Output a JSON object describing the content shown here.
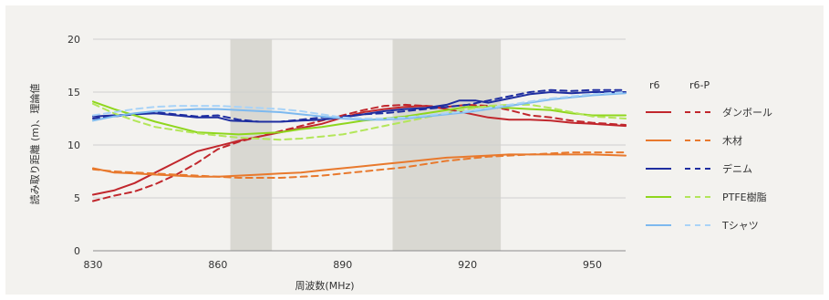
{
  "chart_data": {
    "type": "line",
    "xlabel": "周波数(MHz)",
    "ylabel": "読み取り距離 (m)、理論値",
    "xlim": [
      830,
      958
    ],
    "ylim": [
      0,
      20
    ],
    "x_ticks": [
      830,
      860,
      890,
      920,
      950
    ],
    "y_ticks": [
      0,
      5,
      10,
      15,
      20
    ],
    "grid": "horizontal",
    "shaded_bands": [
      [
        863,
        873
      ],
      [
        902,
        928
      ]
    ],
    "legend": {
      "position": "right",
      "col_solid": "r6",
      "col_dashed": "r6-P",
      "entries": [
        "ダンボール",
        "木材",
        "デニム",
        "PTFE樹脂",
        "Tシャツ"
      ]
    },
    "series": [
      {
        "name": "ダンボール",
        "variant": "r6",
        "style": "solid",
        "color": "#c1272d",
        "points": [
          [
            830,
            5.3
          ],
          [
            835,
            5.7
          ],
          [
            840,
            6.4
          ],
          [
            845,
            7.4
          ],
          [
            850,
            8.4
          ],
          [
            855,
            9.4
          ],
          [
            860,
            9.9
          ],
          [
            865,
            10.4
          ],
          [
            870,
            10.8
          ],
          [
            875,
            11.2
          ],
          [
            880,
            11.6
          ],
          [
            885,
            12.0
          ],
          [
            890,
            12.6
          ],
          [
            895,
            13.1
          ],
          [
            900,
            13.4
          ],
          [
            905,
            13.6
          ],
          [
            910,
            13.7
          ],
          [
            915,
            13.4
          ],
          [
            920,
            13.0
          ],
          [
            925,
            12.6
          ],
          [
            930,
            12.4
          ],
          [
            935,
            12.4
          ],
          [
            940,
            12.3
          ],
          [
            945,
            12.1
          ],
          [
            950,
            12.0
          ],
          [
            958,
            11.8
          ]
        ]
      },
      {
        "name": "ダンボール",
        "variant": "r6-P",
        "style": "dashed",
        "color": "#c1272d",
        "points": [
          [
            830,
            4.7
          ],
          [
            835,
            5.2
          ],
          [
            840,
            5.6
          ],
          [
            845,
            6.3
          ],
          [
            850,
            7.2
          ],
          [
            855,
            8.3
          ],
          [
            860,
            9.6
          ],
          [
            865,
            10.3
          ],
          [
            870,
            10.8
          ],
          [
            875,
            11.3
          ],
          [
            880,
            11.8
          ],
          [
            885,
            12.3
          ],
          [
            890,
            12.8
          ],
          [
            895,
            13.3
          ],
          [
            900,
            13.7
          ],
          [
            905,
            13.8
          ],
          [
            910,
            13.7
          ],
          [
            915,
            13.6
          ],
          [
            920,
            13.8
          ],
          [
            925,
            13.7
          ],
          [
            930,
            13.3
          ],
          [
            935,
            12.8
          ],
          [
            940,
            12.6
          ],
          [
            945,
            12.3
          ],
          [
            950,
            12.1
          ],
          [
            958,
            11.9
          ]
        ]
      },
      {
        "name": "木材",
        "variant": "r6",
        "style": "solid",
        "color": "#e8792d",
        "points": [
          [
            830,
            7.8
          ],
          [
            835,
            7.4
          ],
          [
            840,
            7.3
          ],
          [
            845,
            7.2
          ],
          [
            850,
            7.1
          ],
          [
            855,
            7.0
          ],
          [
            860,
            7.0
          ],
          [
            865,
            7.1
          ],
          [
            870,
            7.2
          ],
          [
            875,
            7.3
          ],
          [
            880,
            7.4
          ],
          [
            885,
            7.6
          ],
          [
            890,
            7.8
          ],
          [
            895,
            8.0
          ],
          [
            900,
            8.2
          ],
          [
            905,
            8.4
          ],
          [
            910,
            8.6
          ],
          [
            915,
            8.8
          ],
          [
            920,
            8.9
          ],
          [
            925,
            9.0
          ],
          [
            930,
            9.1
          ],
          [
            935,
            9.1
          ],
          [
            940,
            9.1
          ],
          [
            945,
            9.1
          ],
          [
            950,
            9.1
          ],
          [
            958,
            9.0
          ]
        ]
      },
      {
        "name": "木材",
        "variant": "r6-P",
        "style": "dashed",
        "color": "#e8792d",
        "points": [
          [
            830,
            7.7
          ],
          [
            835,
            7.5
          ],
          [
            840,
            7.4
          ],
          [
            845,
            7.3
          ],
          [
            850,
            7.2
          ],
          [
            855,
            7.1
          ],
          [
            860,
            7.0
          ],
          [
            865,
            6.9
          ],
          [
            870,
            6.9
          ],
          [
            875,
            6.9
          ],
          [
            880,
            7.0
          ],
          [
            885,
            7.1
          ],
          [
            890,
            7.3
          ],
          [
            895,
            7.5
          ],
          [
            900,
            7.7
          ],
          [
            905,
            7.9
          ],
          [
            910,
            8.2
          ],
          [
            915,
            8.5
          ],
          [
            920,
            8.7
          ],
          [
            925,
            8.9
          ],
          [
            930,
            9.0
          ],
          [
            935,
            9.1
          ],
          [
            940,
            9.2
          ],
          [
            945,
            9.3
          ],
          [
            950,
            9.3
          ],
          [
            958,
            9.3
          ]
        ]
      },
      {
        "name": "デニム",
        "variant": "r6",
        "style": "solid",
        "color": "#1f2ea0",
        "points": [
          [
            830,
            12.7
          ],
          [
            835,
            12.8
          ],
          [
            840,
            12.9
          ],
          [
            845,
            13.0
          ],
          [
            850,
            12.8
          ],
          [
            855,
            12.6
          ],
          [
            860,
            12.6
          ],
          [
            863,
            12.3
          ],
          [
            870,
            12.2
          ],
          [
            875,
            12.2
          ],
          [
            880,
            12.3
          ],
          [
            885,
            12.4
          ],
          [
            890,
            12.6
          ],
          [
            895,
            12.9
          ],
          [
            900,
            13.2
          ],
          [
            905,
            13.4
          ],
          [
            910,
            13.5
          ],
          [
            915,
            13.8
          ],
          [
            918,
            14.2
          ],
          [
            922,
            14.2
          ],
          [
            925,
            14.0
          ],
          [
            930,
            14.4
          ],
          [
            935,
            14.8
          ],
          [
            940,
            15.0
          ],
          [
            945,
            14.9
          ],
          [
            950,
            15.0
          ],
          [
            958,
            15.0
          ]
        ]
      },
      {
        "name": "デニム",
        "variant": "r6-P",
        "style": "dashed",
        "color": "#1f2ea0",
        "points": [
          [
            830,
            12.5
          ],
          [
            835,
            12.7
          ],
          [
            840,
            12.9
          ],
          [
            845,
            13.1
          ],
          [
            850,
            12.9
          ],
          [
            855,
            12.7
          ],
          [
            860,
            12.8
          ],
          [
            865,
            12.4
          ],
          [
            870,
            12.2
          ],
          [
            875,
            12.2
          ],
          [
            880,
            12.4
          ],
          [
            885,
            12.6
          ],
          [
            890,
            12.7
          ],
          [
            895,
            12.9
          ],
          [
            900,
            13.0
          ],
          [
            905,
            13.2
          ],
          [
            910,
            13.4
          ],
          [
            915,
            13.6
          ],
          [
            920,
            13.8
          ],
          [
            925,
            14.2
          ],
          [
            930,
            14.6
          ],
          [
            935,
            15.0
          ],
          [
            940,
            15.2
          ],
          [
            945,
            15.1
          ],
          [
            950,
            15.2
          ],
          [
            958,
            15.2
          ]
        ]
      },
      {
        "name": "PTFE樹脂",
        "variant": "r6",
        "style": "solid",
        "color": "#8fd61d",
        "points": [
          [
            830,
            14.1
          ],
          [
            835,
            13.4
          ],
          [
            840,
            12.8
          ],
          [
            845,
            12.2
          ],
          [
            850,
            11.7
          ],
          [
            855,
            11.2
          ],
          [
            860,
            11.1
          ],
          [
            865,
            11.0
          ],
          [
            870,
            11.1
          ],
          [
            875,
            11.2
          ],
          [
            880,
            11.5
          ],
          [
            885,
            11.7
          ],
          [
            890,
            12.0
          ],
          [
            895,
            12.3
          ],
          [
            900,
            12.5
          ],
          [
            905,
            12.7
          ],
          [
            910,
            13.0
          ],
          [
            915,
            13.3
          ],
          [
            920,
            13.6
          ],
          [
            925,
            13.6
          ],
          [
            930,
            13.5
          ],
          [
            935,
            13.4
          ],
          [
            940,
            13.3
          ],
          [
            945,
            13.0
          ],
          [
            950,
            12.8
          ],
          [
            958,
            12.8
          ]
        ]
      },
      {
        "name": "PTFE樹脂",
        "variant": "r6-P",
        "style": "dashed",
        "color": "#b3e65a",
        "points": [
          [
            830,
            13.9
          ],
          [
            835,
            13.0
          ],
          [
            840,
            12.3
          ],
          [
            845,
            11.7
          ],
          [
            850,
            11.4
          ],
          [
            855,
            11.1
          ],
          [
            860,
            10.9
          ],
          [
            865,
            10.7
          ],
          [
            870,
            10.6
          ],
          [
            875,
            10.5
          ],
          [
            880,
            10.6
          ],
          [
            885,
            10.8
          ],
          [
            890,
            11.0
          ],
          [
            895,
            11.4
          ],
          [
            900,
            11.8
          ],
          [
            905,
            12.2
          ],
          [
            910,
            12.6
          ],
          [
            915,
            13.0
          ],
          [
            920,
            13.4
          ],
          [
            925,
            13.7
          ],
          [
            930,
            13.8
          ],
          [
            935,
            13.8
          ],
          [
            940,
            13.5
          ],
          [
            945,
            13.1
          ],
          [
            950,
            12.7
          ],
          [
            958,
            12.5
          ]
        ]
      },
      {
        "name": "Tシャツ",
        "variant": "r6",
        "style": "solid",
        "color": "#7db9ef",
        "points": [
          [
            830,
            12.3
          ],
          [
            835,
            12.7
          ],
          [
            840,
            13.0
          ],
          [
            845,
            13.2
          ],
          [
            850,
            13.3
          ],
          [
            855,
            13.4
          ],
          [
            860,
            13.4
          ],
          [
            865,
            13.3
          ],
          [
            870,
            13.2
          ],
          [
            875,
            13.1
          ],
          [
            880,
            12.9
          ],
          [
            885,
            12.7
          ],
          [
            890,
            12.5
          ],
          [
            895,
            12.4
          ],
          [
            900,
            12.4
          ],
          [
            905,
            12.5
          ],
          [
            910,
            12.7
          ],
          [
            915,
            12.9
          ],
          [
            920,
            13.1
          ],
          [
            925,
            13.4
          ],
          [
            930,
            13.7
          ],
          [
            935,
            14.0
          ],
          [
            940,
            14.3
          ],
          [
            945,
            14.5
          ],
          [
            950,
            14.7
          ],
          [
            958,
            14.9
          ]
        ]
      },
      {
        "name": "Tシャツ",
        "variant": "r6-P",
        "style": "dashed",
        "color": "#a9d3f7",
        "points": [
          [
            830,
            12.8
          ],
          [
            835,
            13.1
          ],
          [
            840,
            13.4
          ],
          [
            845,
            13.6
          ],
          [
            850,
            13.7
          ],
          [
            855,
            13.7
          ],
          [
            860,
            13.7
          ],
          [
            865,
            13.6
          ],
          [
            870,
            13.5
          ],
          [
            875,
            13.4
          ],
          [
            880,
            13.2
          ],
          [
            885,
            12.9
          ],
          [
            890,
            12.6
          ],
          [
            895,
            12.5
          ],
          [
            900,
            12.5
          ],
          [
            905,
            12.6
          ],
          [
            910,
            12.8
          ],
          [
            915,
            13.0
          ],
          [
            920,
            13.2
          ],
          [
            925,
            13.5
          ],
          [
            930,
            13.8
          ],
          [
            935,
            14.1
          ],
          [
            940,
            14.4
          ],
          [
            945,
            14.6
          ],
          [
            950,
            14.8
          ],
          [
            958,
            15.0
          ]
        ]
      }
    ]
  }
}
